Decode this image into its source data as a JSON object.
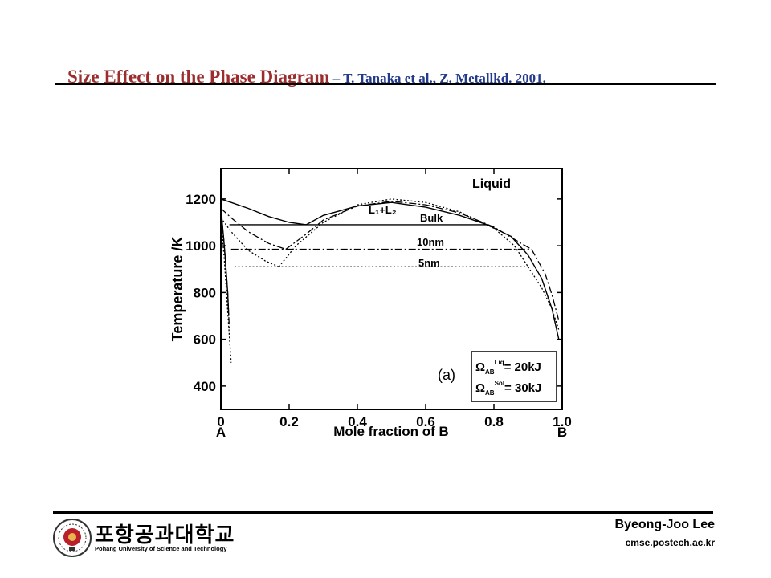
{
  "header": {
    "title_main": "Size Effect on the Phase Diagram",
    "title_sub": " – T. Tanaka et al., Z. Metallkd. 2001."
  },
  "chart_data": {
    "type": "line",
    "xlabel": "Mole fraction of B",
    "ylabel": "Temperature /K",
    "xlim": [
      0,
      1
    ],
    "ylim": [
      300,
      1330
    ],
    "xticks": [
      0,
      0.2,
      0.4,
      0.6,
      0.8,
      1.0
    ],
    "xtick_labels": [
      "0",
      "0.2",
      "0.4",
      "0.6",
      "0.8",
      "1.0"
    ],
    "yticks": [
      400,
      600,
      800,
      1000,
      1200
    ],
    "ytick_labels": [
      "400",
      "600",
      "800",
      "1000",
      "1200"
    ],
    "x_end_labels": [
      "A",
      "B"
    ],
    "grid": false,
    "panel_label": "(a)",
    "region_labels": [
      "Liquid",
      "L₁+L₂"
    ],
    "parameter_box": {
      "line1": {
        "symbol": "Ω",
        "sub": "AB",
        "sup": "Liq",
        "value": "= 20kJ"
      },
      "line2": {
        "symbol": "Ω",
        "sub": "AB",
        "sup": "Sol",
        "value": "= 30kJ"
      }
    },
    "series": [
      {
        "name": "Bulk",
        "style": "solid",
        "liquidus": [
          [
            0,
            1200
          ],
          [
            0.03,
            1185
          ],
          [
            0.08,
            1160
          ],
          [
            0.14,
            1125
          ],
          [
            0.2,
            1100
          ],
          [
            0.25,
            1090
          ]
        ],
        "miscibility_gap": [
          [
            0.25,
            1090
          ],
          [
            0.3,
            1130
          ],
          [
            0.4,
            1170
          ],
          [
            0.5,
            1185
          ],
          [
            0.6,
            1165
          ],
          [
            0.7,
            1130
          ],
          [
            0.78,
            1090
          ]
        ],
        "liquidus_right": [
          [
            0.78,
            1090
          ],
          [
            0.85,
            1040
          ],
          [
            0.9,
            960
          ],
          [
            0.94,
            860
          ],
          [
            0.97,
            730
          ],
          [
            0.99,
            600
          ]
        ],
        "solidus_left": [
          [
            0,
            1200
          ],
          [
            0.004,
            1100
          ],
          [
            0.01,
            1000
          ],
          [
            0.015,
            900
          ],
          [
            0.02,
            800
          ],
          [
            0.023,
            700
          ]
        ],
        "monotectic_T": 1090,
        "monotectic_x": [
          0.025,
          0.78
        ]
      },
      {
        "name": "10nm",
        "style": "dashdot",
        "liquidus": [
          [
            0,
            1160
          ],
          [
            0.03,
            1120
          ],
          [
            0.08,
            1060
          ],
          [
            0.14,
            1010
          ],
          [
            0.19,
            985
          ]
        ],
        "miscibility_gap": [
          [
            0.19,
            985
          ],
          [
            0.25,
            1050
          ],
          [
            0.3,
            1110
          ],
          [
            0.4,
            1170
          ],
          [
            0.5,
            1190
          ],
          [
            0.6,
            1175
          ],
          [
            0.7,
            1140
          ],
          [
            0.8,
            1080
          ],
          [
            0.88,
            1010
          ],
          [
            0.91,
            985
          ]
        ],
        "liquidus_right": [
          [
            0.91,
            985
          ],
          [
            0.95,
            880
          ],
          [
            0.97,
            790
          ],
          [
            0.99,
            680
          ]
        ],
        "solidus_left": [
          [
            0,
            1160
          ],
          [
            0.01,
            1000
          ],
          [
            0.02,
            800
          ],
          [
            0.025,
            640
          ]
        ],
        "monotectic_T": 985,
        "monotectic_x": [
          0.03,
          0.91
        ]
      },
      {
        "name": "5nm",
        "style": "dotted",
        "liquidus": [
          [
            0,
            1120
          ],
          [
            0.03,
            1060
          ],
          [
            0.08,
            980
          ],
          [
            0.13,
            935
          ],
          [
            0.17,
            910
          ]
        ],
        "miscibility_gap": [
          [
            0.17,
            910
          ],
          [
            0.22,
            1000
          ],
          [
            0.3,
            1100
          ],
          [
            0.4,
            1175
          ],
          [
            0.5,
            1200
          ],
          [
            0.6,
            1185
          ],
          [
            0.7,
            1145
          ],
          [
            0.8,
            1075
          ],
          [
            0.86,
            1000
          ],
          [
            0.9,
            910
          ]
        ],
        "liquidus_right": [
          [
            0.9,
            910
          ],
          [
            0.94,
            820
          ],
          [
            0.97,
            730
          ],
          [
            0.99,
            640
          ]
        ],
        "solidus_left": [
          [
            0,
            1120
          ],
          [
            0.01,
            940
          ],
          [
            0.02,
            720
          ],
          [
            0.03,
            500
          ]
        ],
        "monotectic_T": 910,
        "monotectic_x": [
          0.04,
          0.9
        ]
      }
    ]
  },
  "footer": {
    "university_ko": "포항공과대학교",
    "university_en": "Pohang University of Science and Technology",
    "author": "Byeong-Joo Lee",
    "website": "cmse.postech.ac.kr"
  }
}
